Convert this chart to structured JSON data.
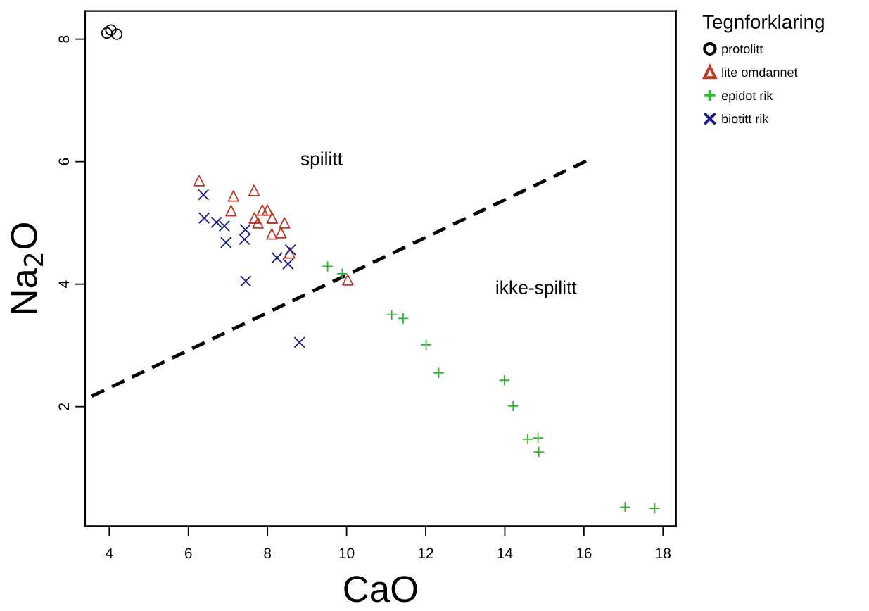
{
  "chart_data": {
    "type": "scatter",
    "xlabel": "CaO",
    "ylabel": "Na$_{2}$O",
    "legend_title": "Tegnforklaring",
    "legend": "top right",
    "grid": false,
    "xlim": [
      3.39,
      18.33
    ],
    "ylim": [
      0.05,
      8.46
    ],
    "xticks": [
      4,
      6,
      8,
      10,
      12,
      14,
      16,
      18
    ],
    "yticks": [
      2,
      4,
      6,
      8
    ],
    "series": [
      {
        "name": "protolitt",
        "color": "#000000",
        "marker": "circle",
        "x": [
          3.94,
          4.04,
          4.19
        ],
        "values": [
          8.1,
          8.15,
          8.08
        ]
      },
      {
        "name": "lite omdannet",
        "color": "#c0392b",
        "marker": "triangle",
        "x": [
          6.27,
          7.14,
          7.66,
          7.08,
          7.87,
          8.0,
          7.67,
          8.12,
          7.76,
          8.43,
          8.11,
          8.34,
          8.56,
          10.03
        ],
        "values": [
          5.69,
          5.44,
          5.53,
          5.2,
          5.21,
          5.21,
          5.08,
          5.08,
          5.0,
          5.0,
          4.82,
          4.84,
          4.51,
          4.07
        ]
      },
      {
        "name": "epidot rik",
        "color": "#2db82d",
        "marker": "plus",
        "x": [
          9.52,
          9.89,
          11.14,
          11.43,
          12.01,
          12.33,
          13.99,
          14.21,
          14.58,
          14.84,
          14.86,
          17.04,
          17.79
        ],
        "values": [
          4.29,
          4.17,
          3.5,
          3.44,
          3.01,
          2.55,
          2.43,
          2.01,
          1.47,
          1.49,
          1.26,
          0.36,
          0.34
        ]
      },
      {
        "name": "biotitt rik",
        "color": "#1a1a8c",
        "marker": "cross",
        "x": [
          6.38,
          6.4,
          6.71,
          6.91,
          7.44,
          6.95,
          7.42,
          8.58,
          8.24,
          8.52,
          7.45,
          8.81
        ],
        "values": [
          5.46,
          5.08,
          5.01,
          4.95,
          4.89,
          4.68,
          4.73,
          4.56,
          4.43,
          4.33,
          4.05,
          3.05
        ]
      },
      {
        "type": "line",
        "color": "#000000",
        "line_style": "dashed",
        "marker": "none",
        "x": [
          3.56,
          16.09
        ],
        "values": [
          2.17,
          6.02
        ]
      }
    ],
    "annotations": [
      "spilitt",
      "ikke-spilitt"
    ]
  }
}
